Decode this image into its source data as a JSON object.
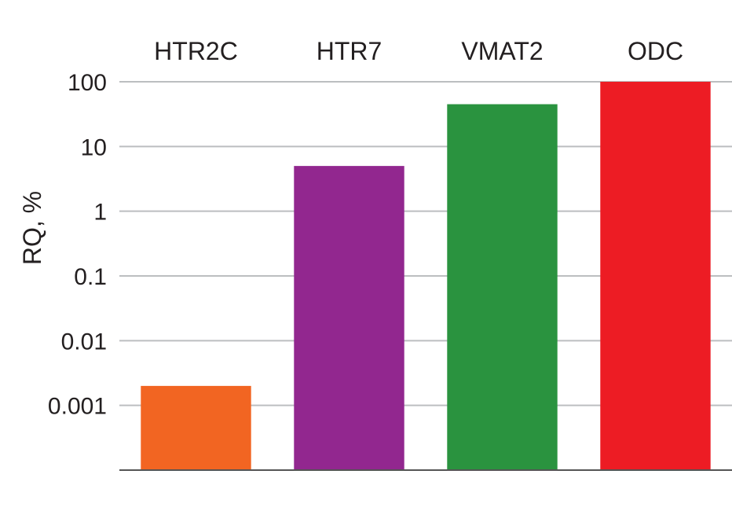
{
  "chart_data": {
    "type": "bar",
    "categories": [
      "HTR2C",
      "HTR7",
      "VMAT2",
      "ODC"
    ],
    "values": [
      0.002,
      5,
      45,
      100
    ],
    "colors": [
      "#f26522",
      "#92278f",
      "#2a933f",
      "#ed1c24"
    ],
    "title": "",
    "xlabel": "",
    "ylabel": "RQ, %",
    "yscale": "log",
    "ylim": [
      0.0001,
      100
    ],
    "yticks": [
      100,
      10,
      1,
      0.1,
      0.01,
      0.001
    ],
    "ytick_labels": [
      "100",
      "10",
      "1",
      "0.1",
      "0.01",
      "0.001"
    ],
    "category_label_position": "top",
    "grid": "horizontal",
    "legend": "none"
  }
}
